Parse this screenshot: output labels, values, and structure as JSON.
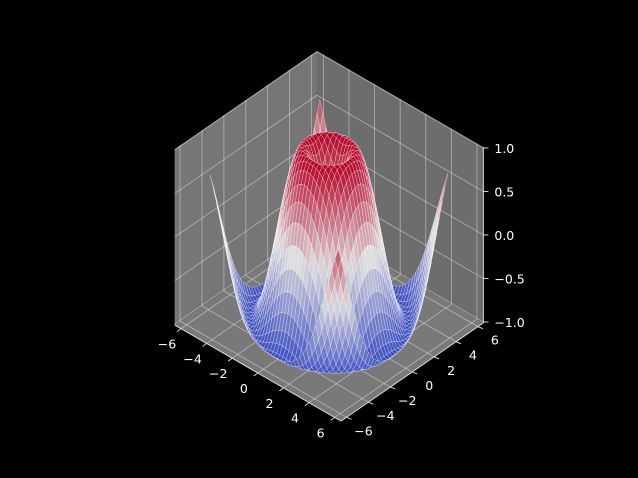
{
  "chart_data": {
    "type": "surface3d",
    "surface_function": "sin(sqrt(x^2 + y^2))",
    "x_range": [
      -5,
      5
    ],
    "y_range": [
      -5,
      5
    ],
    "grid_step": 0.25,
    "zlim": [
      -1.01,
      1.01
    ],
    "colormap": "coolwarm",
    "colormap_stops": [
      "#3b4cc0",
      "#dddddd",
      "#b40426"
    ],
    "pane_color": "#808080",
    "background_color": "#000000",
    "grid_color": "#ffffff",
    "x_ticks": [
      {
        "value": -6,
        "label": "−6"
      },
      {
        "value": -4,
        "label": "−4"
      },
      {
        "value": -2,
        "label": "−2"
      },
      {
        "value": 0,
        "label": "0"
      },
      {
        "value": 2,
        "label": "2"
      },
      {
        "value": 4,
        "label": "4"
      },
      {
        "value": 6,
        "label": "6"
      }
    ],
    "y_ticks": [
      {
        "value": -6,
        "label": "−6"
      },
      {
        "value": -4,
        "label": "−4"
      },
      {
        "value": -2,
        "label": "−2"
      },
      {
        "value": 0,
        "label": "0"
      },
      {
        "value": 2,
        "label": "2"
      },
      {
        "value": 4,
        "label": "4"
      },
      {
        "value": 6,
        "label": "6"
      }
    ],
    "z_ticks": [
      {
        "value": -1.0,
        "label": "−1.0"
      },
      {
        "value": -0.5,
        "label": "−0.5"
      },
      {
        "value": 0.0,
        "label": "0.0"
      },
      {
        "value": 0.5,
        "label": "0.5"
      },
      {
        "value": 1.0,
        "label": "1.0"
      }
    ],
    "title": "",
    "xlabel": "",
    "ylabel": "",
    "zlabel": "",
    "grid": true
  }
}
